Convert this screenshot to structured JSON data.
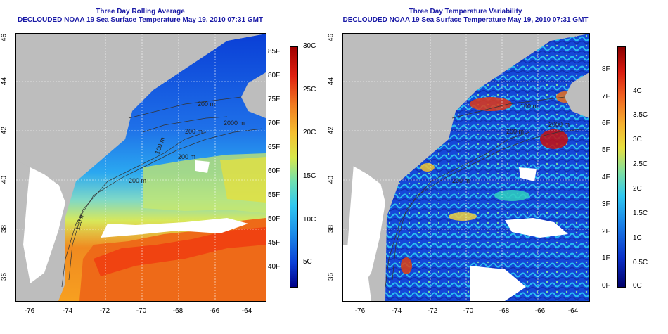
{
  "left_panel": {
    "title_line1": "Three Day Rolling Average",
    "title_line2": "DECLOUDED NOAA 19 Sea Surface Temperature May 19, 2010 07:31 GMT",
    "x_ticks": [
      "-76",
      "-74",
      "-72",
      "-70",
      "-68",
      "-66",
      "-64"
    ],
    "y_ticks": [
      "46",
      "44",
      "42",
      "40",
      "38",
      "36"
    ],
    "contour_labels": [
      "200 m",
      "100 m",
      "2000 m",
      "200 m",
      "200 m",
      "100 m",
      "200 m"
    ],
    "colorbar": {
      "f_labels": [
        "85F",
        "80F",
        "75F",
        "70F",
        "65F",
        "60F",
        "55F",
        "50F",
        "45F",
        "40F"
      ],
      "c_labels": [
        "30C",
        "25C",
        "20C",
        "15C",
        "10C",
        "5C"
      ]
    }
  },
  "right_panel": {
    "title_line1": "Three Day Temperature Variability",
    "title_line2": "DECLOUDED NOAA 19 Sea Surface Temperature May 19, 2010 07:31 GMT",
    "x_ticks": [
      "-76",
      "-74",
      "-72",
      "-70",
      "-68",
      "-66",
      "-64"
    ],
    "y_ticks": [
      "46",
      "44",
      "42",
      "40",
      "38",
      "36"
    ],
    "contour_labels": [
      "100 m",
      "2000 m",
      "200 m",
      "200 m"
    ],
    "colorbar": {
      "f_labels": [
        "8F",
        "7F",
        "6F",
        "5F",
        "4F",
        "3F",
        "2F",
        "1F",
        "0F"
      ],
      "c_labels": [
        "4C",
        "3.5C",
        "3C",
        "2.5C",
        "2C",
        "1.5C",
        "1C",
        "0.5C",
        "0C"
      ]
    }
  },
  "colors": {
    "land": "#bdbdbd",
    "title": "#1a1aa6",
    "cold": "#00008f",
    "warm": "#c80000"
  }
}
